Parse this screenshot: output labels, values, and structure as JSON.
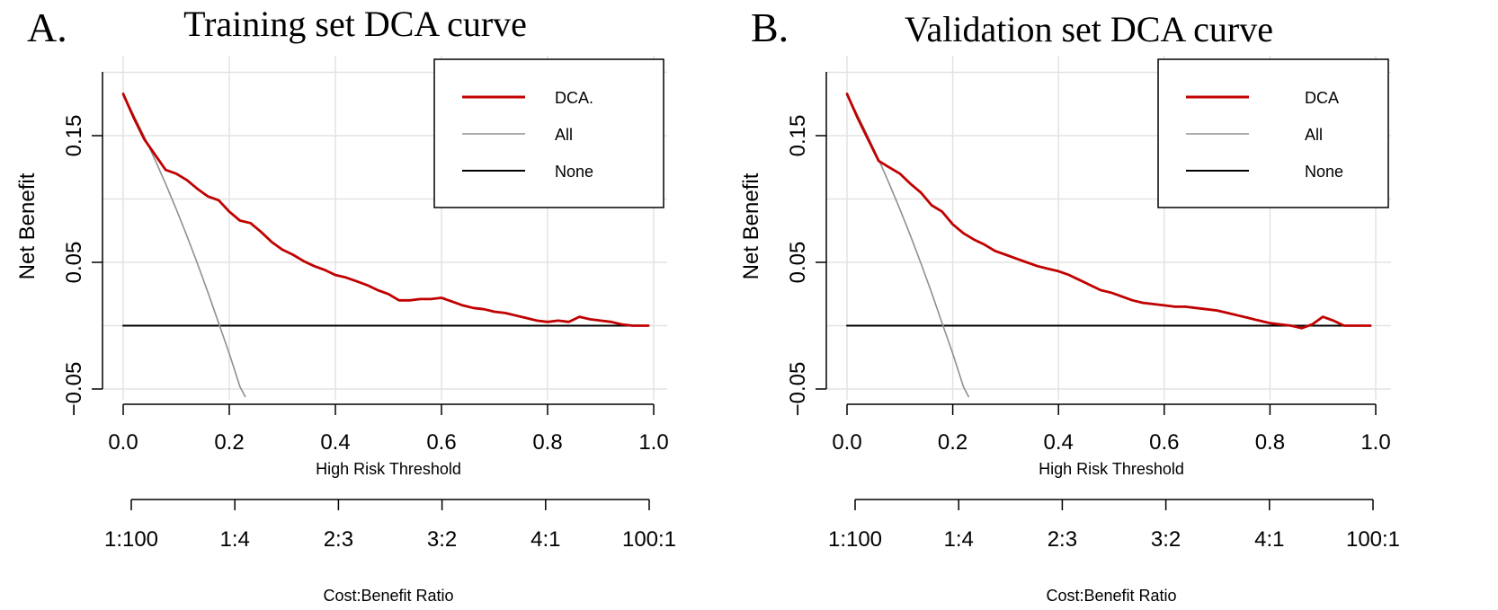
{
  "chart_data": [
    {
      "type": "line",
      "panel_label": "A.",
      "title": "Training set DCA curve",
      "xlabel": "High Risk Threshold",
      "ylabel": "Net Benefit",
      "xlim": [
        0,
        1
      ],
      "ylim": [
        -0.05,
        0.2
      ],
      "grid": true,
      "xticks": [
        "0.0",
        "0.2",
        "0.4",
        "0.6",
        "0.8",
        "1.0"
      ],
      "yticks": [
        "-0.05",
        "0.05",
        "0.15"
      ],
      "legend_position": "top-right",
      "secondary_axis_label": "Cost:Benefit Ratio",
      "secondary_ticks": [
        "1:100",
        "1:4",
        "2:3",
        "3:2",
        "4:1",
        "100:1"
      ],
      "series": [
        {
          "name": "DCA.",
          "color": "#c00000",
          "x": [
            0.0,
            0.02,
            0.04,
            0.06,
            0.08,
            0.1,
            0.12,
            0.14,
            0.16,
            0.18,
            0.2,
            0.22,
            0.24,
            0.26,
            0.28,
            0.3,
            0.32,
            0.34,
            0.36,
            0.38,
            0.4,
            0.42,
            0.44,
            0.46,
            0.48,
            0.5,
            0.52,
            0.54,
            0.56,
            0.58,
            0.6,
            0.62,
            0.64,
            0.66,
            0.68,
            0.7,
            0.72,
            0.74,
            0.76,
            0.78,
            0.8,
            0.82,
            0.84,
            0.86,
            0.88,
            0.9,
            0.92,
            0.94,
            0.96,
            0.98,
            0.99
          ],
          "y": [
            0.183,
            0.164,
            0.147,
            0.135,
            0.123,
            0.12,
            0.115,
            0.108,
            0.102,
            0.099,
            0.09,
            0.083,
            0.081,
            0.074,
            0.066,
            0.06,
            0.056,
            0.051,
            0.047,
            0.044,
            0.04,
            0.038,
            0.035,
            0.032,
            0.028,
            0.025,
            0.02,
            0.02,
            0.021,
            0.021,
            0.022,
            0.019,
            0.016,
            0.014,
            0.013,
            0.011,
            0.01,
            0.008,
            0.006,
            0.004,
            0.003,
            0.004,
            0.003,
            0.007,
            0.005,
            0.004,
            0.003,
            0.001,
            0.0,
            0.0,
            0.0
          ]
        },
        {
          "name": "All",
          "color": "#909090",
          "x": [
            0.0,
            0.02,
            0.04,
            0.06,
            0.08,
            0.1,
            0.12,
            0.14,
            0.16,
            0.18,
            0.2,
            0.22,
            0.23
          ],
          "y": [
            0.183,
            0.166,
            0.149,
            0.131,
            0.112,
            0.092,
            0.071,
            0.049,
            0.026,
            0.002,
            -0.022,
            -0.048,
            -0.056
          ]
        },
        {
          "name": "None",
          "color": "#000000",
          "x": [
            0.0,
            0.99
          ],
          "y": [
            0.0,
            0.0
          ]
        }
      ]
    },
    {
      "type": "line",
      "panel_label": "B.",
      "title": "Validation set DCA curve",
      "xlabel": "High Risk Threshold",
      "ylabel": "Net Benefit",
      "xlim": [
        0,
        1
      ],
      "ylim": [
        -0.05,
        0.2
      ],
      "grid": true,
      "xticks": [
        "0.0",
        "0.2",
        "0.4",
        "0.6",
        "0.8",
        "1.0"
      ],
      "yticks": [
        "-0.05",
        "0.05",
        "0.15"
      ],
      "legend_position": "top-right",
      "secondary_axis_label": "Cost:Benefit Ratio",
      "secondary_ticks": [
        "1:100",
        "1:4",
        "2:3",
        "3:2",
        "4:1",
        "100:1"
      ],
      "series": [
        {
          "name": "DCA",
          "color": "#c00000",
          "x": [
            0.0,
            0.02,
            0.04,
            0.06,
            0.08,
            0.1,
            0.12,
            0.14,
            0.16,
            0.18,
            0.2,
            0.22,
            0.24,
            0.26,
            0.28,
            0.3,
            0.32,
            0.34,
            0.36,
            0.38,
            0.4,
            0.42,
            0.44,
            0.46,
            0.48,
            0.5,
            0.52,
            0.54,
            0.56,
            0.58,
            0.6,
            0.62,
            0.64,
            0.66,
            0.68,
            0.7,
            0.72,
            0.74,
            0.76,
            0.78,
            0.8,
            0.82,
            0.84,
            0.86,
            0.88,
            0.9,
            0.92,
            0.94,
            0.96,
            0.98,
            0.99
          ],
          "y": [
            0.183,
            0.164,
            0.147,
            0.13,
            0.125,
            0.12,
            0.112,
            0.105,
            0.095,
            0.09,
            0.08,
            0.073,
            0.068,
            0.064,
            0.059,
            0.056,
            0.053,
            0.05,
            0.047,
            0.045,
            0.043,
            0.04,
            0.036,
            0.032,
            0.028,
            0.026,
            0.023,
            0.02,
            0.018,
            0.017,
            0.016,
            0.015,
            0.015,
            0.014,
            0.013,
            0.012,
            0.01,
            0.008,
            0.006,
            0.004,
            0.002,
            0.001,
            0.0,
            -0.002,
            0.001,
            0.007,
            0.004,
            0.0,
            0.0,
            0.0,
            0.0
          ]
        },
        {
          "name": "All",
          "color": "#909090",
          "x": [
            0.0,
            0.02,
            0.04,
            0.06,
            0.08,
            0.1,
            0.12,
            0.14,
            0.16,
            0.18,
            0.2,
            0.22,
            0.23
          ],
          "y": [
            0.183,
            0.166,
            0.149,
            0.131,
            0.112,
            0.092,
            0.071,
            0.049,
            0.026,
            0.002,
            -0.022,
            -0.048,
            -0.056
          ]
        },
        {
          "name": "None",
          "color": "#000000",
          "x": [
            0.0,
            0.99
          ],
          "y": [
            0.0,
            0.0
          ]
        }
      ]
    }
  ]
}
